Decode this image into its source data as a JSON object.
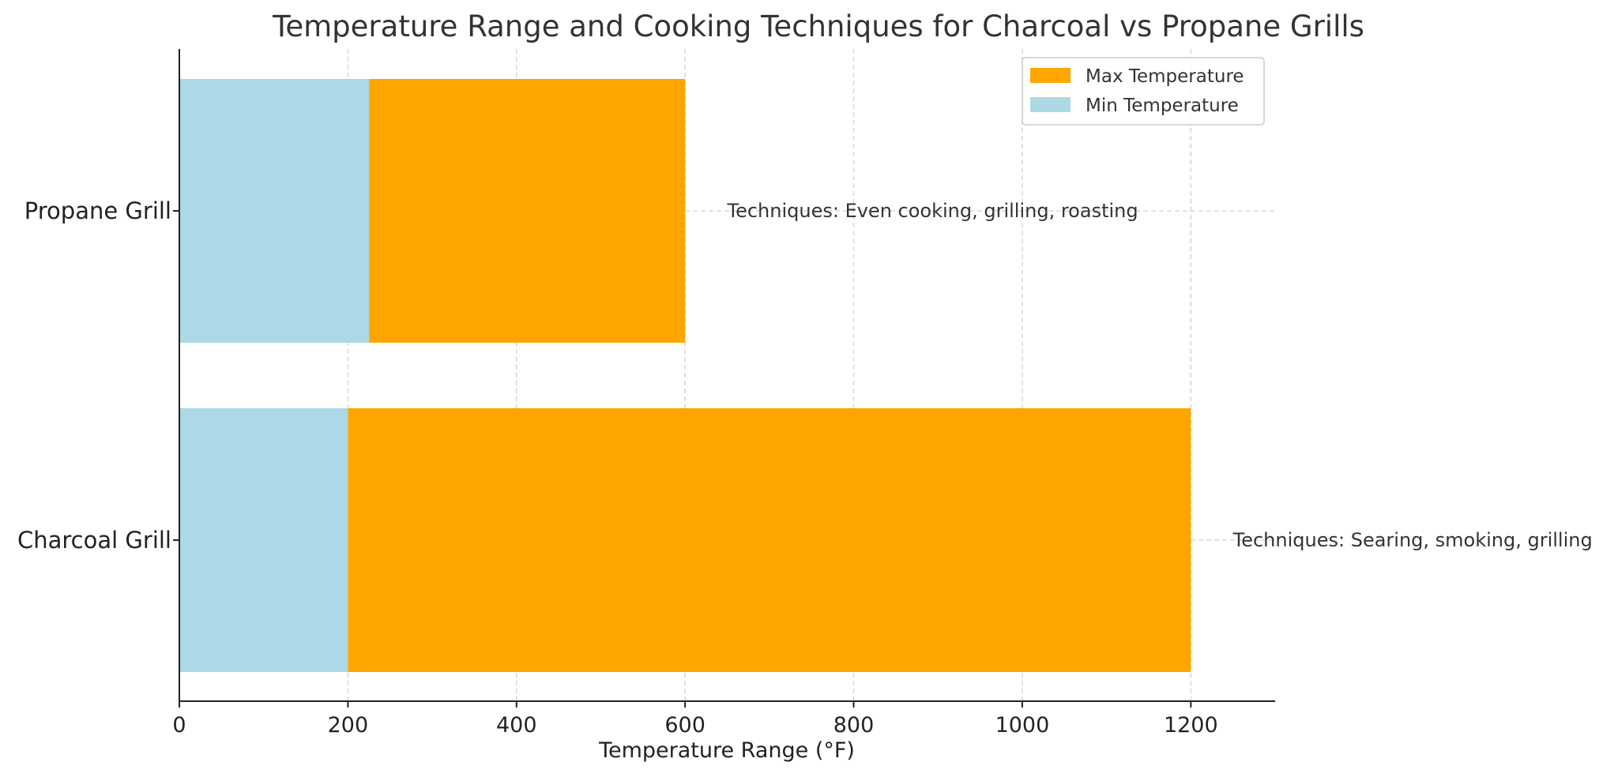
{
  "chart_data": {
    "type": "bar",
    "orientation": "horizontal",
    "title": "Temperature Range and Cooking Techniques for Charcoal vs Propane Grills",
    "xlabel": "Temperature Range (°F)",
    "ylabel": "",
    "xlim": [
      0,
      1300
    ],
    "xticks": [
      0,
      200,
      400,
      600,
      800,
      1000,
      1200
    ],
    "categories": [
      "Charcoal Grill",
      "Propane Grill"
    ],
    "series": [
      {
        "name": "Max Temperature",
        "color": "#FFA500",
        "left": [
          200,
          225
        ],
        "values": [
          1000,
          375
        ],
        "ends": [
          1200,
          600
        ]
      },
      {
        "name": "Min Temperature",
        "color": "#ADD8E6",
        "left": [
          0,
          0
        ],
        "values": [
          200,
          225
        ]
      }
    ],
    "annotations": [
      {
        "category": "Charcoal Grill",
        "x": 1250,
        "text": "Techniques: Searing, smoking, grilling"
      },
      {
        "category": "Propane Grill",
        "x": 650,
        "text": "Techniques: Even cooking, grilling, roasting"
      }
    ],
    "grid": true,
    "legend": {
      "position": "top-right",
      "entries": [
        "Max Temperature",
        "Min Temperature"
      ]
    }
  }
}
